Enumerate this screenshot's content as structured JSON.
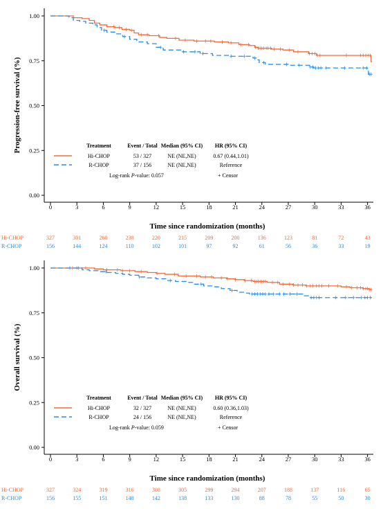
{
  "colors": {
    "hi_chop": "#F26B3A",
    "r_chop": "#2B8CE0"
  },
  "x_axis": {
    "title": "Time since randomization (months)",
    "ticks": [
      0,
      3,
      6,
      9,
      12,
      15,
      18,
      21,
      24,
      27,
      30,
      33,
      36
    ],
    "range": [
      0,
      36.5
    ]
  },
  "chart_data": [
    {
      "type": "line",
      "ylabel": "Progression-free survival (%)",
      "xlabel": "Time since randomization (months)",
      "ylim": [
        0,
        1
      ],
      "yticks": [
        "0.00",
        "0.25",
        "0.50",
        "0.75",
        "1.00"
      ],
      "series": [
        {
          "name": "Hi-CHOP",
          "points": [
            [
              0,
              1.0
            ],
            [
              2.3,
              1.0
            ],
            [
              2.6,
              0.99
            ],
            [
              3.6,
              0.985
            ],
            [
              4.4,
              0.975
            ],
            [
              5.0,
              0.96
            ],
            [
              5.6,
              0.95
            ],
            [
              6.4,
              0.94
            ],
            [
              7.3,
              0.935
            ],
            [
              8.1,
              0.925
            ],
            [
              9.0,
              0.92
            ],
            [
              9.5,
              0.905
            ],
            [
              10.0,
              0.895
            ],
            [
              11.2,
              0.89
            ],
            [
              12.4,
              0.88
            ],
            [
              13.2,
              0.875
            ],
            [
              14.6,
              0.865
            ],
            [
              16.3,
              0.86
            ],
            [
              18.6,
              0.855
            ],
            [
              20.2,
              0.85
            ],
            [
              21.4,
              0.84
            ],
            [
              22.6,
              0.835
            ],
            [
              23.2,
              0.825
            ],
            [
              23.6,
              0.82
            ],
            [
              25.1,
              0.815
            ],
            [
              26.4,
              0.81
            ],
            [
              27.6,
              0.8
            ],
            [
              29.3,
              0.79
            ],
            [
              30.2,
              0.78
            ],
            [
              36.4,
              0.78
            ],
            [
              36.4,
              0.745
            ],
            [
              36.5,
              0.745
            ]
          ],
          "censor": [
            7.2,
            7.8,
            8.6,
            9.2,
            10.3,
            11.0,
            12.3,
            14.2,
            15.3,
            16.6,
            17.6,
            18.2,
            19.5,
            20.5,
            21.6,
            22.5,
            23.3,
            23.6,
            23.8,
            24.0,
            24.2,
            24.5,
            24.7,
            25.0,
            25.4,
            26.1,
            27.1,
            28.1,
            29.4,
            29.7,
            30.0,
            30.3,
            30.6,
            33.6,
            35.2,
            35.5,
            35.8,
            36.1,
            36.3
          ]
        },
        {
          "name": "R-CHOP",
          "points": [
            [
              0,
              1.0
            ],
            [
              1.8,
              1.0
            ],
            [
              2.1,
              0.99
            ],
            [
              2.6,
              0.975
            ],
            [
              3.3,
              0.97
            ],
            [
              4.0,
              0.96
            ],
            [
              4.8,
              0.95
            ],
            [
              5.3,
              0.935
            ],
            [
              5.8,
              0.92
            ],
            [
              6.4,
              0.91
            ],
            [
              7.4,
              0.9
            ],
            [
              8.2,
              0.885
            ],
            [
              9.0,
              0.87
            ],
            [
              9.8,
              0.855
            ],
            [
              11.0,
              0.845
            ],
            [
              12.0,
              0.825
            ],
            [
              12.8,
              0.81
            ],
            [
              14.8,
              0.8
            ],
            [
              17.0,
              0.79
            ],
            [
              18.4,
              0.78
            ],
            [
              20.4,
              0.775
            ],
            [
              23.0,
              0.765
            ],
            [
              23.4,
              0.755
            ],
            [
              23.7,
              0.74
            ],
            [
              24.4,
              0.73
            ],
            [
              27.0,
              0.725
            ],
            [
              29.4,
              0.715
            ],
            [
              29.9,
              0.71
            ],
            [
              36.0,
              0.705
            ],
            [
              36.1,
              0.675
            ],
            [
              36.5,
              0.675
            ]
          ],
          "censor": [
            6.1,
            8.4,
            12.5,
            15.1,
            16.4,
            17.3,
            20.5,
            22.0,
            23.2,
            24.2,
            26.8,
            28.2,
            29.5,
            29.8,
            30.1,
            30.4,
            30.7,
            31.3,
            33.4,
            35.5,
            35.9,
            36.2,
            36.4
          ]
        }
      ],
      "legend": {
        "headers": [
          "Treatment",
          "Event / Total",
          "Median (95% CI)",
          "HR (95% CI)"
        ],
        "rows": [
          {
            "treatment": "Hi-CHOP",
            "events": "53 / 327",
            "median": "NE (NE,NE)",
            "hr": "0.67 (0.44,1.01)"
          },
          {
            "treatment": "R-CHOP",
            "events": "37 / 156",
            "median": "NE (NE,NE)",
            "hr": "Reference"
          }
        ],
        "logrank_prefix": "Log-rank ",
        "logrank_p": "P",
        "logrank_value": "-value: 0.057",
        "censor_label": "+ Censor"
      },
      "at_risk": {
        "Hi-CHOP": [
          "327",
          "301",
          "260",
          "238",
          "220",
          "215",
          "209",
          "200",
          "136",
          "123",
          "81",
          "72",
          "43"
        ],
        "R-CHOP": [
          "156",
          "144",
          "124",
          "110",
          "102",
          "101",
          "97",
          "92",
          "61",
          "56",
          "36",
          "33",
          "19"
        ]
      }
    },
    {
      "type": "line",
      "ylabel": "Overall survival (%)",
      "xlabel": "Time since randomization (months)",
      "ylim": [
        0,
        1
      ],
      "yticks": [
        "0.00",
        "0.25",
        "0.50",
        "0.75",
        "1.00"
      ],
      "series": [
        {
          "name": "Hi-CHOP",
          "points": [
            [
              0,
              1.0
            ],
            [
              4.6,
              1.0
            ],
            [
              5.0,
              0.995
            ],
            [
              6.0,
              0.99
            ],
            [
              8.0,
              0.985
            ],
            [
              9.6,
              0.98
            ],
            [
              11.0,
              0.975
            ],
            [
              12.0,
              0.97
            ],
            [
              13.0,
              0.965
            ],
            [
              14.5,
              0.955
            ],
            [
              17.0,
              0.95
            ],
            [
              18.5,
              0.945
            ],
            [
              20.0,
              0.94
            ],
            [
              21.0,
              0.935
            ],
            [
              22.0,
              0.93
            ],
            [
              23.0,
              0.925
            ],
            [
              24.6,
              0.92
            ],
            [
              26.0,
              0.91
            ],
            [
              27.5,
              0.905
            ],
            [
              29.0,
              0.9
            ],
            [
              33.0,
              0.895
            ],
            [
              34.0,
              0.89
            ],
            [
              35.5,
              0.885
            ],
            [
              36.2,
              0.88
            ],
            [
              36.5,
              0.88
            ]
          ],
          "censor": [
            2.5,
            3.0,
            4.0,
            6.4,
            7.6,
            8.2,
            9.0,
            10.3,
            12.1,
            14.1,
            15.4,
            16.6,
            17.6,
            18.3,
            19.4,
            20.1,
            21.0,
            22.1,
            22.8,
            23.2,
            23.4,
            23.6,
            23.8,
            24.0,
            24.2,
            24.4,
            25.2,
            25.8,
            26.4,
            27.1,
            27.6,
            28.1,
            28.6,
            29.1,
            29.5,
            29.8,
            30.2,
            30.5,
            30.8,
            31.6,
            32.6,
            33.6,
            34.2,
            34.8,
            35.2,
            35.5,
            35.8,
            36.0,
            36.2,
            36.4
          ]
        },
        {
          "name": "R-CHOP",
          "points": [
            [
              0,
              1.0
            ],
            [
              3.0,
              1.0
            ],
            [
              3.6,
              0.99
            ],
            [
              4.4,
              0.985
            ],
            [
              5.4,
              0.98
            ],
            [
              6.4,
              0.975
            ],
            [
              7.4,
              0.97
            ],
            [
              8.2,
              0.965
            ],
            [
              9.0,
              0.96
            ],
            [
              10.0,
              0.95
            ],
            [
              11.0,
              0.945
            ],
            [
              12.0,
              0.94
            ],
            [
              13.2,
              0.93
            ],
            [
              14.2,
              0.925
            ],
            [
              15.4,
              0.92
            ],
            [
              16.2,
              0.91
            ],
            [
              17.4,
              0.9
            ],
            [
              18.4,
              0.895
            ],
            [
              19.4,
              0.885
            ],
            [
              20.4,
              0.875
            ],
            [
              21.2,
              0.865
            ],
            [
              22.0,
              0.86
            ],
            [
              22.6,
              0.855
            ],
            [
              28.8,
              0.845
            ],
            [
              29.4,
              0.835
            ],
            [
              36.5,
              0.835
            ]
          ],
          "censor": [
            2.2,
            3.2,
            6.3,
            10.1,
            13.6,
            17.1,
            20.6,
            22.9,
            23.2,
            23.5,
            23.8,
            24.1,
            24.4,
            24.8,
            25.3,
            26.0,
            26.5,
            27.2,
            28.0,
            29.6,
            29.9,
            30.2,
            30.5,
            32.4,
            33.5,
            34.4,
            35.3,
            35.7,
            36.0,
            36.3
          ]
        }
      ],
      "legend": {
        "headers": [
          "Treatment",
          "Event / Total",
          "Median (95% CI)",
          "HR (95% CI)"
        ],
        "rows": [
          {
            "treatment": "Hi-CHOP",
            "events": "32 / 327",
            "median": "NE (NE,NE)",
            "hr": "0.60 (0.36,1.03)"
          },
          {
            "treatment": "R-CHOP",
            "events": "24 / 156",
            "median": "NE (NE,NE)",
            "hr": "Reference"
          }
        ],
        "logrank_prefix": "Log-rank ",
        "logrank_p": "P",
        "logrank_value": "-value: 0.059",
        "censor_label": "+ Censor"
      },
      "at_risk": {
        "Hi-CHOP": [
          "327",
          "324",
          "319",
          "316",
          "308",
          "305",
          "299",
          "294",
          "207",
          "188",
          "137",
          "116",
          "65"
        ],
        "R-CHOP": [
          "156",
          "155",
          "151",
          "148",
          "142",
          "138",
          "133",
          "130",
          "88",
          "78",
          "55",
          "50",
          "30"
        ]
      }
    }
  ]
}
